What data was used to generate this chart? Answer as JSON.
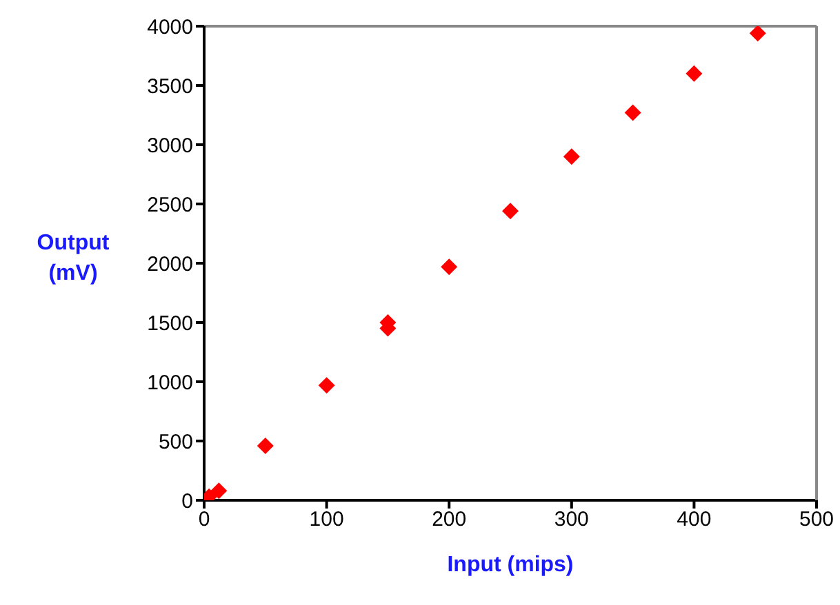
{
  "chart_data": {
    "type": "scatter",
    "xlabel": "Input (mips)",
    "ylabel": "Output (mV)",
    "x": [
      4,
      12,
      50,
      100,
      150,
      150,
      200,
      250,
      300,
      350,
      400,
      452
    ],
    "values": [
      30,
      80,
      460,
      970,
      1500,
      1450,
      1970,
      2440,
      2900,
      3270,
      3600,
      3940
    ],
    "color": "#ff0000",
    "marker": "diamond",
    "xlim": [
      0,
      500
    ],
    "xticks": [
      0,
      100,
      200,
      300,
      400,
      500
    ],
    "ylim": [
      0,
      4000
    ],
    "yticks": [
      0,
      500,
      1000,
      1500,
      2000,
      2500,
      3000,
      3500,
      4000
    ],
    "grid": false
  }
}
